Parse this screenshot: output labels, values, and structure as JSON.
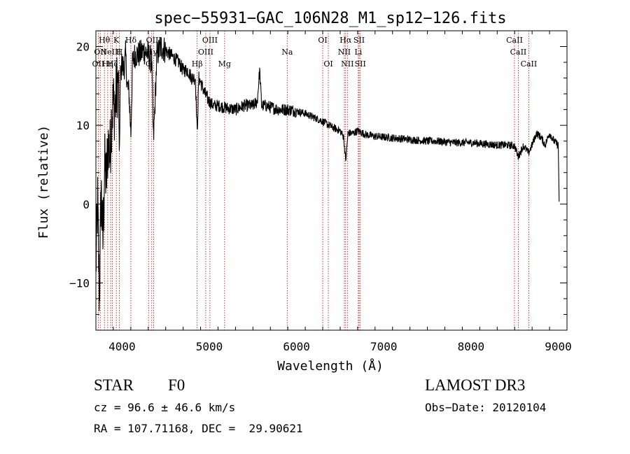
{
  "chart_data": {
    "type": "line",
    "title": "spec−55931−GAC_106N28_M1_sp12−126.fits",
    "xlabel": "Wavelength (Å)",
    "ylabel": "Flux (relative)",
    "xlim": [
      3700,
      9100
    ],
    "ylim": [
      -16,
      22
    ],
    "xticks": [
      4000,
      5000,
      6000,
      7000,
      8000,
      9000
    ],
    "yticks": [
      -10,
      0,
      10,
      20
    ],
    "ytick_labels": [
      "−10",
      "0",
      "10",
      "20"
    ],
    "line_color": "#000000",
    "marker_color": "#cc0000",
    "series": [
      {
        "name": "flux",
        "x": [
          3700,
          3720,
          3740,
          3760,
          3780,
          3800,
          3820,
          3840,
          3860,
          3880,
          3900,
          3920,
          3940,
          3960,
          3968,
          3980,
          4000,
          4020,
          4040,
          4060,
          4080,
          4101,
          4120,
          4150,
          4200,
          4250,
          4300,
          4340,
          4360,
          4400,
          4450,
          4500,
          4550,
          4600,
          4650,
          4700,
          4750,
          4800,
          4840,
          4861,
          4880,
          4900,
          4950,
          5000,
          5050,
          5100,
          5200,
          5300,
          5400,
          5500,
          5550,
          5577,
          5600,
          5650,
          5700,
          5800,
          5900,
          6000,
          6100,
          6200,
          6300,
          6400,
          6500,
          6540,
          6563,
          6590,
          6650,
          6700,
          6800,
          6900,
          7000,
          7100,
          7200,
          7300,
          7400,
          7500,
          7600,
          7700,
          7800,
          7900,
          8000,
          8100,
          8200,
          8300,
          8400,
          8500,
          8540,
          8600,
          8660,
          8700,
          8750,
          8800,
          8850,
          8900,
          8950,
          9000,
          9010
        ],
        "y": [
          -8,
          0,
          -12,
          2,
          -5,
          5,
          3,
          8,
          6,
          11,
          13,
          12,
          15,
          16,
          5,
          16,
          18,
          17,
          19,
          15,
          14,
          9,
          18,
          19,
          19,
          19.5,
          19,
          18,
          8,
          19,
          20,
          19.5,
          19,
          18.5,
          18,
          17,
          17,
          16,
          16,
          9,
          16,
          15.5,
          14,
          13,
          12.5,
          12.5,
          12.2,
          12,
          12.5,
          12.5,
          13,
          17,
          12.5,
          12.5,
          12.3,
          12,
          12,
          11.8,
          11.5,
          11,
          10.5,
          9.8,
          9.3,
          8.5,
          5.5,
          9,
          9,
          9.3,
          8.8,
          8.6,
          8.5,
          8.4,
          8.3,
          8.2,
          8.1,
          8.0,
          8.0,
          7.9,
          7.8,
          7.8,
          7.8,
          7.7,
          7.6,
          7.5,
          7.5,
          7.4,
          6,
          7.4,
          6.5,
          7.5,
          9,
          8.5,
          7.5,
          9,
          8,
          7.5,
          0.3
        ]
      }
    ],
    "lines": [
      {
        "wavelength": 3727,
        "label": "OII",
        "row": 3
      },
      {
        "wavelength": 3750,
        "label": "OII",
        "row": 2
      },
      {
        "wavelength": 3798,
        "label": "Hθ",
        "row": 1
      },
      {
        "wavelength": 3835,
        "label": "Hη",
        "row": 3
      },
      {
        "wavelength": 3869,
        "label": "NeIII",
        "row": 2
      },
      {
        "wavelength": 3889,
        "label": "Hζ",
        "row": 3
      },
      {
        "wavelength": 3934,
        "label": "K",
        "row": 1
      },
      {
        "wavelength": 3968,
        "label": "H",
        "row": 2
      },
      {
        "wavelength": 4101,
        "label": "Hδ",
        "row": 1
      },
      {
        "wavelength": 4304,
        "label": "G",
        "row": 3
      },
      {
        "wavelength": 4340,
        "label": "Hγ",
        "row": 2
      },
      {
        "wavelength": 4363,
        "label": "OIII",
        "row": 1
      },
      {
        "wavelength": 4861,
        "label": "Hβ",
        "row": 3
      },
      {
        "wavelength": 4959,
        "label": "OIII",
        "row": 2
      },
      {
        "wavelength": 5007,
        "label": "OIII",
        "row": 1
      },
      {
        "wavelength": 5175,
        "label": "Mg",
        "row": 3
      },
      {
        "wavelength": 5893,
        "label": "Na",
        "row": 2
      },
      {
        "wavelength": 6300,
        "label": "OI",
        "row": 1
      },
      {
        "wavelength": 6364,
        "label": "OI",
        "row": 3
      },
      {
        "wavelength": 6548,
        "label": "NII",
        "row": 2
      },
      {
        "wavelength": 6563,
        "label": "Hα",
        "row": 1
      },
      {
        "wavelength": 6583,
        "label": "NII",
        "row": 3
      },
      {
        "wavelength": 6708,
        "label": "Li",
        "row": 2
      },
      {
        "wavelength": 6717,
        "label": "SII",
        "row": 1
      },
      {
        "wavelength": 6731,
        "label": "SII",
        "row": 3
      },
      {
        "wavelength": 8498,
        "label": "CaII",
        "row": 1
      },
      {
        "wavelength": 8542,
        "label": "CaII",
        "row": 2
      },
      {
        "wavelength": 8662,
        "label": "CaII",
        "row": 3
      }
    ]
  },
  "info": {
    "object_class": "STAR",
    "subclass": "F0",
    "survey": "LAMOST DR3",
    "redshift": "cz = 96.6 ± 46.6 km/s",
    "obs_date": "Obs−Date: 20120104",
    "coords": "RA = 107.71168, DEC =  29.90621"
  }
}
